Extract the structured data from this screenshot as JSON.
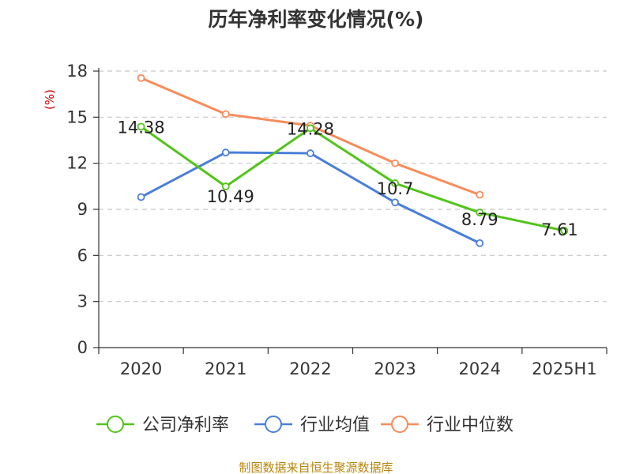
{
  "chart_data": {
    "type": "line",
    "title": "历年净利率变化情况(%)",
    "ylabel": "(%)",
    "categories": [
      "2020",
      "2021",
      "2022",
      "2023",
      "2024",
      "2025H1"
    ],
    "ylim": [
      0,
      18
    ],
    "yticks": [
      0,
      3,
      6,
      9,
      12,
      15,
      18
    ],
    "grid": true,
    "legend_position": "bottom",
    "series": [
      {
        "name": "公司净利率",
        "color": "#52c41a",
        "values": [
          14.38,
          10.49,
          14.28,
          10.7,
          8.79,
          7.61
        ],
        "labels": [
          "14.38",
          "10.49",
          "14.28",
          "10.7",
          "8.79",
          "7.61"
        ]
      },
      {
        "name": "行业均值",
        "color": "#4a7fd8",
        "values": [
          9.8,
          12.7,
          12.65,
          9.45,
          6.8,
          null
        ]
      },
      {
        "name": "行业中位数",
        "color": "#f78c5a",
        "values": [
          17.55,
          15.2,
          14.45,
          12.0,
          9.95,
          null
        ]
      }
    ]
  },
  "footer": {
    "source": "制图数据来自恒生聚源数据库"
  }
}
